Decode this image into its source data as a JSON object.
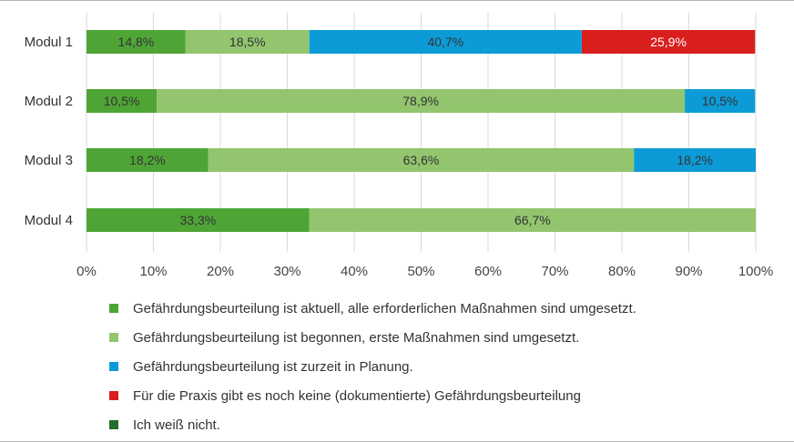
{
  "chart_data": {
    "type": "bar",
    "orientation": "horizontal",
    "stacked": true,
    "categories": [
      "Modul 1",
      "Modul 2",
      "Modul 3",
      "Modul 4"
    ],
    "x_ticks": [
      "0%",
      "10%",
      "20%",
      "30%",
      "40%",
      "50%",
      "60%",
      "70%",
      "80%",
      "90%",
      "100%"
    ],
    "xlim": [
      0,
      100
    ],
    "grid": "vertical",
    "legend_position": "bottom",
    "series": [
      {
        "name": "Gefährdungsbeurteilung ist aktuell, alle erforderlichen Maßnahmen sind umgesetzt.",
        "color": "#4ea536",
        "label_color": "#333333",
        "values": [
          14.8,
          10.5,
          18.2,
          33.3
        ],
        "labels": [
          "14,8%",
          "10,5%",
          "18,2%",
          "33,3%"
        ]
      },
      {
        "name": "Gefährdungsbeurteilung ist begonnen, erste Maßnahmen sind umgesetzt.",
        "color": "#92c56e",
        "label_color": "#333333",
        "values": [
          18.5,
          78.9,
          63.6,
          66.7
        ],
        "labels": [
          "18,5%",
          "78,9%",
          "63,6%",
          "66,7%"
        ]
      },
      {
        "name": "Gefährdungsbeurteilung ist zurzeit in Planung.",
        "color": "#0d9bd7",
        "label_color": "#333333",
        "values": [
          40.7,
          10.5,
          18.2,
          0
        ],
        "labels": [
          "40,7%",
          "10,5%",
          "18,2%",
          ""
        ]
      },
      {
        "name": "Für die Praxis gibt es noch keine (dokumentierte) Gefährdungsbeurteilung",
        "color": "#d91e1e",
        "label_color": "#ffffff",
        "values": [
          25.9,
          0,
          0,
          0
        ],
        "labels": [
          "25,9%",
          "",
          "",
          ""
        ]
      },
      {
        "name": "Ich weiß nicht.",
        "color": "#1f6e2b",
        "label_color": "#ffffff",
        "values": [
          0,
          0,
          0,
          0
        ],
        "labels": [
          "",
          "",
          "",
          ""
        ]
      }
    ]
  }
}
